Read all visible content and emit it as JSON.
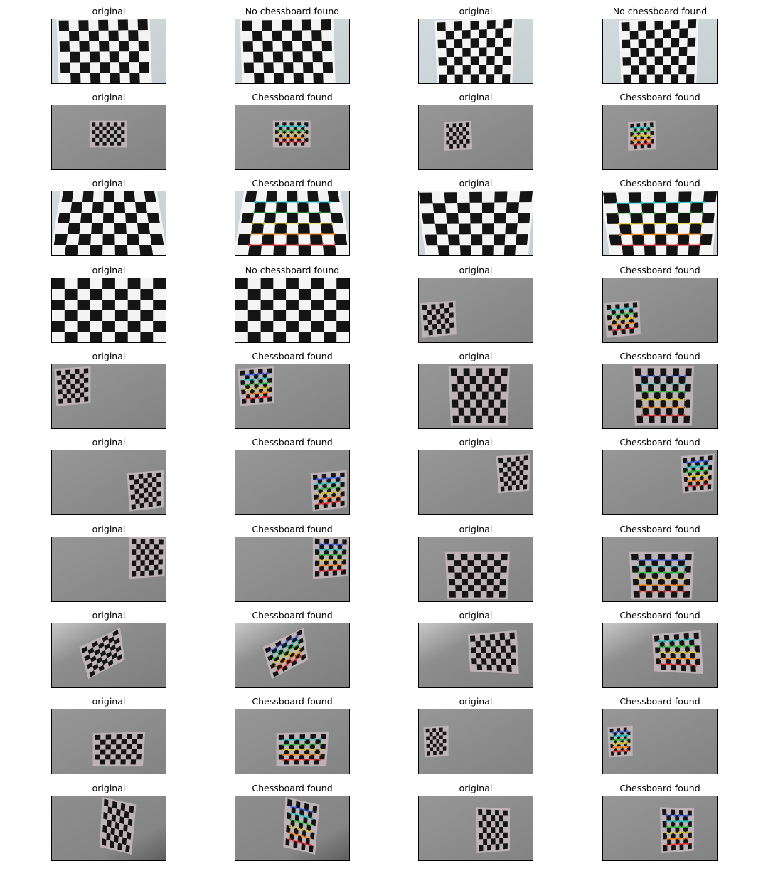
{
  "figure": {
    "rows": [
      [
        {
          "title": "original",
          "bg": "light",
          "board": {
            "cols": 9,
            "rows": 6,
            "tl": [
              0.06,
              0.02
            ],
            "tr": [
              0.84,
              0.0
            ],
            "br": [
              0.86,
              1.0
            ],
            "bl": [
              0.08,
              1.0
            ]
          },
          "corners": false
        },
        {
          "title": "No chessboard found",
          "bg": "light",
          "board": {
            "cols": 9,
            "rows": 6,
            "tl": [
              0.06,
              0.02
            ],
            "tr": [
              0.84,
              0.0
            ],
            "br": [
              0.86,
              1.0
            ],
            "bl": [
              0.08,
              1.0
            ]
          },
          "corners": false
        },
        {
          "title": "original",
          "bg": "light",
          "board": {
            "cols": 9,
            "rows": 7,
            "tl": [
              0.16,
              0.05
            ],
            "tr": [
              0.82,
              0.0
            ],
            "br": [
              0.8,
              1.0
            ],
            "bl": [
              0.18,
              1.0
            ]
          },
          "corners": false
        },
        {
          "title": "No chessboard found",
          "bg": "light",
          "board": {
            "cols": 9,
            "rows": 7,
            "tl": [
              0.16,
              0.05
            ],
            "tr": [
              0.82,
              0.0
            ],
            "br": [
              0.8,
              1.0
            ],
            "bl": [
              0.18,
              1.0
            ]
          },
          "corners": false
        }
      ],
      [
        {
          "title": "original",
          "bg": "gray",
          "board": {
            "cols": 9,
            "rows": 6,
            "tl": [
              0.35,
              0.27
            ],
            "tr": [
              0.64,
              0.27
            ],
            "br": [
              0.64,
              0.63
            ],
            "bl": [
              0.35,
              0.63
            ]
          },
          "corners": false
        },
        {
          "title": "Chessboard found",
          "bg": "gray",
          "board": {
            "cols": 9,
            "rows": 6,
            "tl": [
              0.35,
              0.27
            ],
            "tr": [
              0.64,
              0.27
            ],
            "br": [
              0.64,
              0.63
            ],
            "bl": [
              0.35,
              0.63
            ]
          },
          "corners": true
        },
        {
          "title": "original",
          "bg": "gray",
          "board": {
            "cols": 7,
            "rows": 6,
            "tl": [
              0.24,
              0.29
            ],
            "tr": [
              0.44,
              0.27
            ],
            "br": [
              0.45,
              0.66
            ],
            "bl": [
              0.24,
              0.68
            ]
          },
          "corners": false
        },
        {
          "title": "Chessboard found",
          "bg": "gray",
          "board": {
            "cols": 7,
            "rows": 6,
            "tl": [
              0.24,
              0.29
            ],
            "tr": [
              0.44,
              0.27
            ],
            "br": [
              0.45,
              0.66
            ],
            "bl": [
              0.24,
              0.68
            ]
          },
          "corners": true
        }
      ],
      [
        {
          "title": "original",
          "bg": "light",
          "board": {
            "cols": 9,
            "rows": 6,
            "tl": [
              0.1,
              0.0
            ],
            "tr": [
              0.9,
              0.0
            ],
            "br": [
              1.0,
              1.0
            ],
            "bl": [
              0.0,
              1.0
            ]
          },
          "corners": false
        },
        {
          "title": "Chessboard found",
          "bg": "light",
          "board": {
            "cols": 9,
            "rows": 6,
            "tl": [
              0.1,
              0.0
            ],
            "tr": [
              0.9,
              0.0
            ],
            "br": [
              1.0,
              1.0
            ],
            "bl": [
              0.0,
              1.0
            ]
          },
          "corners": true
        },
        {
          "title": "original",
          "bg": "light",
          "board": {
            "cols": 9,
            "rows": 6,
            "tl": [
              0.0,
              0.02
            ],
            "tr": [
              1.0,
              0.0
            ],
            "br": [
              0.94,
              1.0
            ],
            "bl": [
              0.08,
              1.0
            ]
          },
          "corners": false
        },
        {
          "title": "Chessboard found",
          "bg": "light",
          "board": {
            "cols": 9,
            "rows": 6,
            "tl": [
              0.0,
              0.02
            ],
            "tr": [
              1.0,
              0.0
            ],
            "br": [
              0.94,
              1.0
            ],
            "bl": [
              0.08,
              1.0
            ]
          },
          "corners": true
        }
      ],
      [
        {
          "title": "original",
          "bg": "light",
          "board": {
            "cols": 9,
            "rows": 6,
            "tl": [
              0.0,
              0.0
            ],
            "tr": [
              1.0,
              0.0
            ],
            "br": [
              1.0,
              1.0
            ],
            "bl": [
              0.0,
              1.0
            ]
          },
          "corners": false
        },
        {
          "title": "No chessboard found",
          "bg": "light",
          "board": {
            "cols": 9,
            "rows": 6,
            "tl": [
              0.0,
              0.0
            ],
            "tr": [
              1.0,
              0.0
            ],
            "br": [
              1.0,
              1.0
            ],
            "bl": [
              0.0,
              1.0
            ]
          },
          "corners": false
        },
        {
          "title": "original",
          "bg": "gray",
          "board": {
            "cols": 7,
            "rows": 6,
            "tl": [
              0.03,
              0.42
            ],
            "tr": [
              0.3,
              0.38
            ],
            "br": [
              0.31,
              0.85
            ],
            "bl": [
              0.05,
              0.9
            ]
          },
          "corners": false
        },
        {
          "title": "Chessboard found",
          "bg": "gray",
          "board": {
            "cols": 7,
            "rows": 6,
            "tl": [
              0.03,
              0.42
            ],
            "tr": [
              0.3,
              0.38
            ],
            "br": [
              0.31,
              0.85
            ],
            "bl": [
              0.05,
              0.9
            ]
          },
          "corners": true
        }
      ],
      [
        {
          "title": "original",
          "bg": "gray",
          "board": {
            "cols": 7,
            "rows": 7,
            "tl": [
              0.04,
              0.1
            ],
            "tr": [
              0.32,
              0.06
            ],
            "br": [
              0.32,
              0.58
            ],
            "bl": [
              0.06,
              0.62
            ]
          },
          "corners": false
        },
        {
          "title": "Chessboard found",
          "bg": "gray",
          "board": {
            "cols": 7,
            "rows": 7,
            "tl": [
              0.04,
              0.1
            ],
            "tr": [
              0.32,
              0.06
            ],
            "br": [
              0.32,
              0.58
            ],
            "bl": [
              0.06,
              0.62
            ]
          },
          "corners": true
        },
        {
          "title": "original",
          "bg": "gray",
          "board": {
            "cols": 9,
            "rows": 7,
            "tl": [
              0.28,
              0.06
            ],
            "tr": [
              0.78,
              0.06
            ],
            "br": [
              0.76,
              0.92
            ],
            "bl": [
              0.3,
              0.92
            ]
          },
          "corners": false
        },
        {
          "title": "Chessboard found",
          "bg": "gray",
          "board": {
            "cols": 9,
            "rows": 7,
            "tl": [
              0.28,
              0.06
            ],
            "tr": [
              0.78,
              0.06
            ],
            "br": [
              0.76,
              0.92
            ],
            "bl": [
              0.3,
              0.92
            ]
          },
          "corners": true
        }
      ],
      [
        {
          "title": "original",
          "bg": "gray",
          "board": {
            "cols": 7,
            "rows": 7,
            "tl": [
              0.68,
              0.38
            ],
            "tr": [
              0.96,
              0.34
            ],
            "br": [
              0.96,
              0.86
            ],
            "bl": [
              0.7,
              0.92
            ]
          },
          "corners": false
        },
        {
          "title": "Chessboard found",
          "bg": "gray",
          "board": {
            "cols": 7,
            "rows": 7,
            "tl": [
              0.68,
              0.38
            ],
            "tr": [
              0.96,
              0.34
            ],
            "br": [
              0.96,
              0.86
            ],
            "bl": [
              0.7,
              0.92
            ]
          },
          "corners": true
        },
        {
          "title": "original",
          "bg": "gray",
          "board": {
            "cols": 7,
            "rows": 7,
            "tl": [
              0.7,
              0.12
            ],
            "tr": [
              0.96,
              0.08
            ],
            "br": [
              0.95,
              0.6
            ],
            "bl": [
              0.72,
              0.64
            ]
          },
          "corners": false
        },
        {
          "title": "Chessboard found",
          "bg": "gray",
          "board": {
            "cols": 7,
            "rows": 7,
            "tl": [
              0.7,
              0.12
            ],
            "tr": [
              0.96,
              0.08
            ],
            "br": [
              0.95,
              0.6
            ],
            "bl": [
              0.72,
              0.64
            ]
          },
          "corners": true
        }
      ],
      [
        {
          "title": "original",
          "bg": "gray",
          "board": {
            "cols": 7,
            "rows": 7,
            "tl": [
              0.7,
              0.02
            ],
            "tr": [
              0.98,
              0.04
            ],
            "br": [
              0.97,
              0.58
            ],
            "bl": [
              0.7,
              0.62
            ]
          },
          "corners": false
        },
        {
          "title": "Chessboard found",
          "bg": "gray",
          "board": {
            "cols": 7,
            "rows": 7,
            "tl": [
              0.7,
              0.02
            ],
            "tr": [
              0.98,
              0.04
            ],
            "br": [
              0.97,
              0.58
            ],
            "bl": [
              0.7,
              0.62
            ]
          },
          "corners": true
        },
        {
          "title": "original",
          "bg": "gray",
          "board": {
            "cols": 9,
            "rows": 7,
            "tl": [
              0.25,
              0.26
            ],
            "tr": [
              0.78,
              0.26
            ],
            "br": [
              0.76,
              0.94
            ],
            "bl": [
              0.27,
              0.94
            ]
          },
          "corners": false
        },
        {
          "title": "Chessboard found",
          "bg": "gray",
          "board": {
            "cols": 9,
            "rows": 7,
            "tl": [
              0.25,
              0.26
            ],
            "tr": [
              0.78,
              0.26
            ],
            "br": [
              0.76,
              0.94
            ],
            "bl": [
              0.27,
              0.94
            ]
          },
          "corners": true
        }
      ],
      [
        {
          "title": "original",
          "bg": "grayglare",
          "board": {
            "cols": 7,
            "rows": 7,
            "tl": [
              0.26,
              0.4
            ],
            "tr": [
              0.58,
              0.1
            ],
            "br": [
              0.62,
              0.54
            ],
            "bl": [
              0.34,
              0.84
            ]
          },
          "corners": false
        },
        {
          "title": "Chessboard found",
          "bg": "grayglare",
          "board": {
            "cols": 7,
            "rows": 7,
            "tl": [
              0.26,
              0.4
            ],
            "tr": [
              0.58,
              0.1
            ],
            "br": [
              0.62,
              0.54
            ],
            "bl": [
              0.34,
              0.84
            ]
          },
          "corners": true
        },
        {
          "title": "original",
          "bg": "grayglare",
          "board": {
            "cols": 9,
            "rows": 6,
            "tl": [
              0.45,
              0.2
            ],
            "tr": [
              0.84,
              0.14
            ],
            "br": [
              0.86,
              0.76
            ],
            "bl": [
              0.47,
              0.72
            ]
          },
          "corners": false
        },
        {
          "title": "Chessboard found",
          "bg": "grayglare",
          "board": {
            "cols": 9,
            "rows": 6,
            "tl": [
              0.45,
              0.2
            ],
            "tr": [
              0.84,
              0.14
            ],
            "br": [
              0.86,
              0.76
            ],
            "bl": [
              0.47,
              0.72
            ]
          },
          "corners": true
        }
      ],
      [
        {
          "title": "original",
          "bg": "gray",
          "board": {
            "cols": 9,
            "rows": 6,
            "tl": [
              0.38,
              0.4
            ],
            "tr": [
              0.8,
              0.38
            ],
            "br": [
              0.78,
              0.86
            ],
            "bl": [
              0.38,
              0.86
            ]
          },
          "corners": false
        },
        {
          "title": "Chessboard found",
          "bg": "gray",
          "board": {
            "cols": 9,
            "rows": 6,
            "tl": [
              0.38,
              0.4
            ],
            "tr": [
              0.8,
              0.38
            ],
            "br": [
              0.78,
              0.86
            ],
            "bl": [
              0.38,
              0.86
            ]
          },
          "corners": true
        },
        {
          "title": "original",
          "bg": "gray",
          "board": {
            "cols": 6,
            "rows": 7,
            "tl": [
              0.06,
              0.3
            ],
            "tr": [
              0.24,
              0.28
            ],
            "br": [
              0.24,
              0.7
            ],
            "bl": [
              0.07,
              0.72
            ]
          },
          "corners": false
        },
        {
          "title": "Chessboard found",
          "bg": "gray",
          "board": {
            "cols": 6,
            "rows": 7,
            "tl": [
              0.06,
              0.3
            ],
            "tr": [
              0.24,
              0.28
            ],
            "br": [
              0.24,
              0.7
            ],
            "bl": [
              0.07,
              0.72
            ]
          },
          "corners": true
        }
      ],
      [
        {
          "title": "original",
          "bg": "graydark",
          "board": {
            "cols": 7,
            "rows": 7,
            "tl": [
              0.46,
              0.04
            ],
            "tr": [
              0.72,
              0.16
            ],
            "br": [
              0.68,
              0.88
            ],
            "bl": [
              0.44,
              0.76
            ]
          },
          "corners": false
        },
        {
          "title": "Chessboard found",
          "bg": "graydark",
          "board": {
            "cols": 7,
            "rows": 7,
            "tl": [
              0.46,
              0.04
            ],
            "tr": [
              0.72,
              0.16
            ],
            "br": [
              0.68,
              0.88
            ],
            "bl": [
              0.44,
              0.76
            ]
          },
          "corners": true
        },
        {
          "title": "original",
          "bg": "gray",
          "board": {
            "cols": 7,
            "rows": 7,
            "tl": [
              0.52,
              0.2
            ],
            "tr": [
              0.78,
              0.22
            ],
            "br": [
              0.78,
              0.82
            ],
            "bl": [
              0.53,
              0.86
            ]
          },
          "corners": false
        },
        {
          "title": "Chessboard found",
          "bg": "gray",
          "board": {
            "cols": 7,
            "rows": 7,
            "tl": [
              0.52,
              0.2
            ],
            "tr": [
              0.78,
              0.22
            ],
            "br": [
              0.78,
              0.82
            ],
            "bl": [
              0.53,
              0.86
            ]
          },
          "corners": true
        }
      ]
    ]
  }
}
